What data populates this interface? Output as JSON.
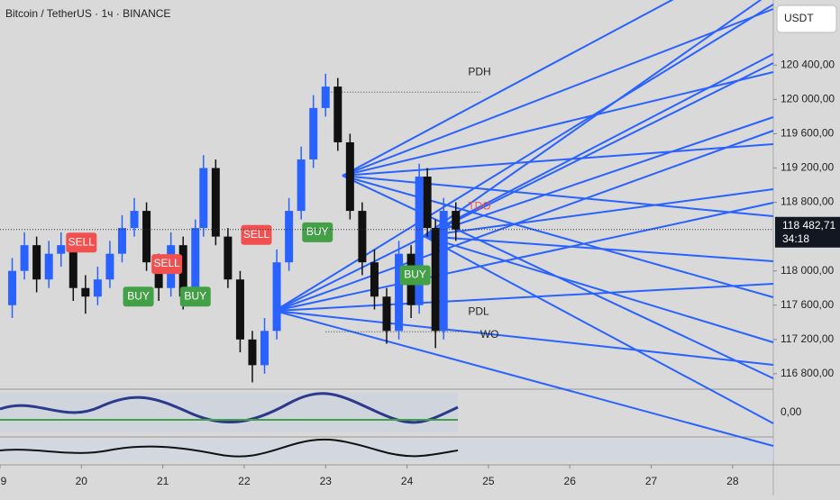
{
  "chart_data": {
    "type": "candlestick",
    "title": "Bitcoin / TetherUS · 1ч · BINANCE",
    "currency": "USDT",
    "xlim": [
      19,
      28.5
    ],
    "xticks": [
      {
        "value": 19,
        "label": "9"
      },
      20,
      21,
      22,
      23,
      24,
      25,
      26,
      27,
      28
    ],
    "ylim": [
      116620,
      121160
    ],
    "yticks": [
      {
        "value": 116800,
        "label": "116 800,00"
      },
      {
        "value": 117200,
        "label": "117 200,00"
      },
      {
        "value": 117600,
        "label": "117 600,00"
      },
      {
        "value": 118000,
        "label": "118 000,00"
      },
      {
        "value": 118800,
        "label": "118 800,00"
      },
      {
        "value": 119200,
        "label": "119 200,00"
      },
      {
        "value": 119600,
        "label": "119 600,00"
      },
      {
        "value": 120000,
        "label": "120 000,00"
      },
      {
        "value": 120400,
        "label": "120 400,00"
      }
    ],
    "candles": [
      {
        "x": 19.15,
        "o": 117600,
        "h": 118150,
        "l": 117450,
        "c": 118000
      },
      {
        "x": 19.3,
        "o": 118000,
        "h": 118450,
        "l": 117900,
        "c": 118300
      },
      {
        "x": 19.45,
        "o": 118300,
        "h": 118400,
        "l": 117750,
        "c": 117900
      },
      {
        "x": 19.6,
        "o": 117900,
        "h": 118350,
        "l": 117800,
        "c": 118200
      },
      {
        "x": 19.75,
        "o": 118200,
        "h": 118450,
        "l": 118050,
        "c": 118300
      },
      {
        "x": 19.9,
        "o": 118300,
        "h": 118400,
        "l": 117650,
        "c": 117800
      },
      {
        "x": 20.05,
        "o": 117800,
        "h": 117950,
        "l": 117500,
        "c": 117700
      },
      {
        "x": 20.2,
        "o": 117700,
        "h": 118050,
        "l": 117600,
        "c": 117900
      },
      {
        "x": 20.35,
        "o": 117900,
        "h": 118350,
        "l": 117800,
        "c": 118200
      },
      {
        "x": 20.5,
        "o": 118200,
        "h": 118650,
        "l": 118100,
        "c": 118500
      },
      {
        "x": 20.65,
        "o": 118500,
        "h": 118850,
        "l": 118400,
        "c": 118700
      },
      {
        "x": 20.8,
        "o": 118700,
        "h": 118800,
        "l": 118000,
        "c": 118100
      },
      {
        "x": 20.95,
        "o": 118100,
        "h": 118200,
        "l": 117650,
        "c": 117800
      },
      {
        "x": 21.1,
        "o": 117800,
        "h": 118450,
        "l": 117700,
        "c": 118300
      },
      {
        "x": 21.25,
        "o": 118300,
        "h": 118400,
        "l": 117550,
        "c": 117700
      },
      {
        "x": 21.4,
        "o": 117700,
        "h": 118600,
        "l": 117600,
        "c": 118500
      },
      {
        "x": 21.5,
        "o": 118500,
        "h": 119350,
        "l": 118400,
        "c": 119200
      },
      {
        "x": 21.65,
        "o": 119200,
        "h": 119300,
        "l": 118300,
        "c": 118400
      },
      {
        "x": 21.8,
        "o": 118400,
        "h": 118500,
        "l": 117800,
        "c": 117900
      },
      {
        "x": 21.95,
        "o": 117900,
        "h": 118000,
        "l": 117050,
        "c": 117200
      },
      {
        "x": 22.1,
        "o": 117200,
        "h": 117300,
        "l": 116700,
        "c": 116900
      },
      {
        "x": 22.25,
        "o": 116900,
        "h": 117450,
        "l": 116800,
        "c": 117300
      },
      {
        "x": 22.4,
        "o": 117300,
        "h": 118250,
        "l": 117200,
        "c": 118100
      },
      {
        "x": 22.55,
        "o": 118100,
        "h": 118850,
        "l": 118000,
        "c": 118700
      },
      {
        "x": 22.7,
        "o": 118700,
        "h": 119450,
        "l": 118600,
        "c": 119300
      },
      {
        "x": 22.85,
        "o": 119300,
        "h": 120050,
        "l": 119200,
        "c": 119900
      },
      {
        "x": 23.0,
        "o": 119900,
        "h": 120300,
        "l": 119800,
        "c": 120150
      },
      {
        "x": 23.15,
        "o": 120150,
        "h": 120250,
        "l": 119400,
        "c": 119500
      },
      {
        "x": 23.3,
        "o": 119500,
        "h": 119600,
        "l": 118600,
        "c": 118700
      },
      {
        "x": 23.45,
        "o": 118700,
        "h": 118800,
        "l": 117950,
        "c": 118100
      },
      {
        "x": 23.6,
        "o": 118100,
        "h": 118250,
        "l": 117550,
        "c": 117700
      },
      {
        "x": 23.75,
        "o": 117700,
        "h": 117800,
        "l": 117150,
        "c": 117300
      },
      {
        "x": 23.9,
        "o": 117300,
        "h": 118350,
        "l": 117200,
        "c": 118200
      },
      {
        "x": 24.05,
        "o": 118200,
        "h": 118300,
        "l": 117450,
        "c": 117600
      },
      {
        "x": 24.15,
        "o": 117600,
        "h": 119250,
        "l": 117500,
        "c": 119100
      },
      {
        "x": 24.25,
        "o": 119100,
        "h": 119200,
        "l": 118400,
        "c": 118500
      },
      {
        "x": 24.35,
        "o": 118500,
        "h": 118600,
        "l": 117100,
        "c": 117300
      },
      {
        "x": 24.45,
        "o": 117300,
        "h": 118850,
        "l": 117200,
        "c": 118700
      },
      {
        "x": 24.6,
        "o": 118700,
        "h": 118800,
        "l": 118350,
        "c": 118482.71
      }
    ],
    "last_price": {
      "value": 118482.71,
      "label": "118 482,71"
    },
    "countdown": "34:18",
    "levels": [
      {
        "name": "PDH",
        "value": 120085
      },
      {
        "name": "PDL",
        "value": 117290
      }
    ],
    "annotations": [
      {
        "text": "TDO",
        "x": 24.75,
        "value": 118750,
        "color": "#f05050"
      },
      {
        "text": "WO",
        "x": 24.9,
        "value": 117250,
        "color": "#222222"
      }
    ],
    "signals": [
      {
        "text": "SELL",
        "x": 20.0,
        "value": 118330,
        "color": "#f05050"
      },
      {
        "text": "BUY",
        "x": 20.7,
        "value": 117700,
        "color": "#43a047"
      },
      {
        "text": "SELL",
        "x": 21.05,
        "value": 118080,
        "color": "#f05050"
      },
      {
        "text": "BUY",
        "x": 21.4,
        "value": 117700,
        "color": "#43a047"
      },
      {
        "text": "SELL",
        "x": 22.15,
        "value": 118420,
        "color": "#f05050"
      },
      {
        "text": "BUY",
        "x": 22.9,
        "value": 118450,
        "color": "#43a047"
      },
      {
        "text": "BUY",
        "x": 24.1,
        "value": 117950,
        "color": "#43a047"
      }
    ],
    "oscillator_label": {
      "value": 0,
      "label": "0,00"
    }
  }
}
